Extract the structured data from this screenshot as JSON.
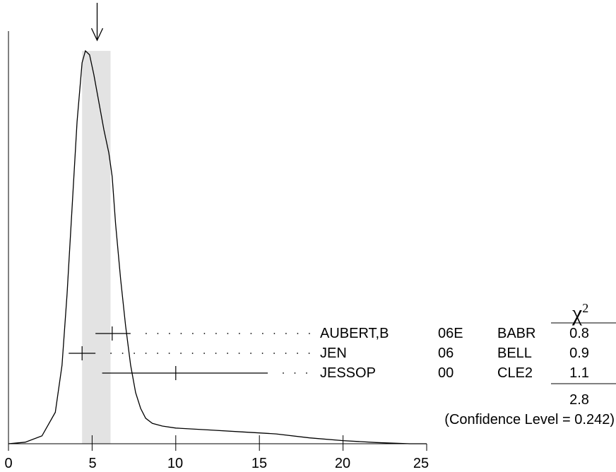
{
  "chart_data": {
    "type": "ideogram",
    "xlim": [
      0,
      25
    ],
    "x_ticks": [
      "0",
      "5",
      "10",
      "15",
      "20",
      "25"
    ],
    "marker_x": 5.3,
    "band": [
      4.4,
      6.1
    ],
    "curve": {
      "peak_x": 4.7,
      "points": [
        [
          0,
          0.0
        ],
        [
          1.0,
          0.004
        ],
        [
          2.0,
          0.02
        ],
        [
          2.8,
          0.08
        ],
        [
          3.2,
          0.2
        ],
        [
          3.5,
          0.38
        ],
        [
          3.8,
          0.6
        ],
        [
          4.1,
          0.82
        ],
        [
          4.4,
          0.97
        ],
        [
          4.6,
          1.0
        ],
        [
          4.85,
          0.99
        ],
        [
          5.1,
          0.94
        ],
        [
          5.4,
          0.87
        ],
        [
          5.7,
          0.8
        ],
        [
          6.0,
          0.74
        ],
        [
          6.2,
          0.68
        ],
        [
          6.4,
          0.56
        ],
        [
          6.7,
          0.42
        ],
        [
          7.0,
          0.3
        ],
        [
          7.3,
          0.2
        ],
        [
          7.6,
          0.13
        ],
        [
          7.9,
          0.09
        ],
        [
          8.2,
          0.065
        ],
        [
          8.6,
          0.052
        ],
        [
          9.2,
          0.045
        ],
        [
          10,
          0.04
        ],
        [
          12,
          0.035
        ],
        [
          14,
          0.03
        ],
        [
          16,
          0.025
        ],
        [
          18,
          0.015
        ],
        [
          20,
          0.008
        ],
        [
          22,
          0.003
        ],
        [
          24,
          0.0
        ],
        [
          25,
          0.0
        ]
      ]
    },
    "measurements": [
      {
        "label": "AUBERT,B",
        "year": "06E",
        "experiment": "BABR",
        "chi2": "0.8",
        "value": 6.2,
        "low": 5.2,
        "high": 7.3
      },
      {
        "label": "JEN",
        "year": "06",
        "experiment": "BELL",
        "chi2": "0.9",
        "value": 4.4,
        "low": 3.6,
        "high": 5.2
      },
      {
        "label": "JESSOP",
        "year": "00",
        "experiment": "CLE2",
        "chi2": "1.1",
        "value": 10.0,
        "low": 5.6,
        "high": 15.5
      }
    ],
    "chi2_header": "χ",
    "chi2_header_sup": "2",
    "chi2_total": "2.8",
    "confidence": "(Confidence Level = 0.242)"
  }
}
